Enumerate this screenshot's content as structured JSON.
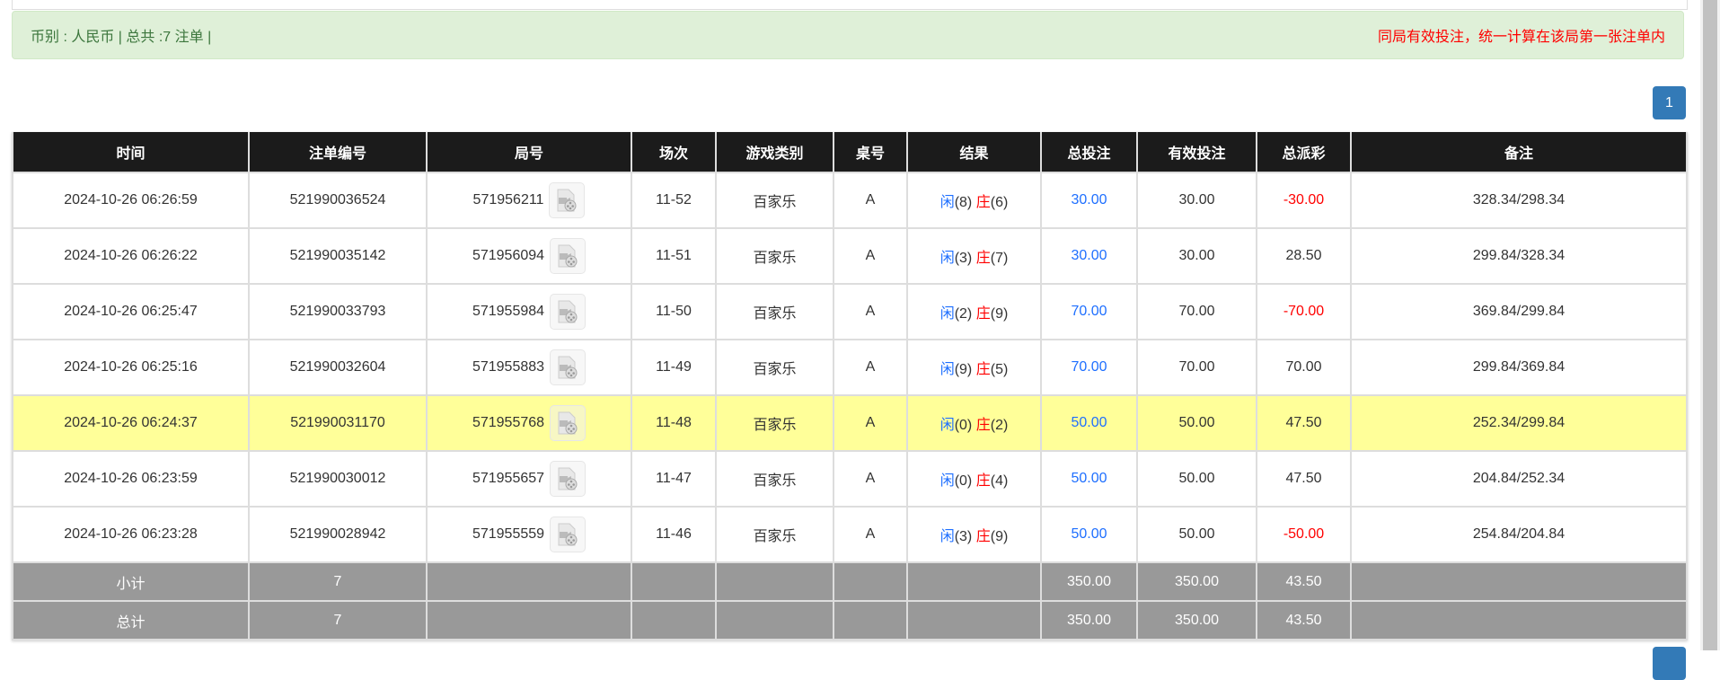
{
  "summary": {
    "left": "币别 : 人民币 | 总共 :7 注单 |",
    "right": "同局有效投注，统一计算在该局第一张注单内"
  },
  "pagination": {
    "current": "1"
  },
  "table": {
    "headers": [
      "时间",
      "注单编号",
      "局号",
      "场次",
      "游戏类别",
      "桌号",
      "结果",
      "总投注",
      "有效投注",
      "总派彩",
      "备注"
    ],
    "rows": [
      {
        "time": "2024-10-26 06:26:59",
        "bet_id": "521990036524",
        "round": "571956211",
        "shoe": "11-52",
        "game": "百家乐",
        "table": "A",
        "player_label": "闲",
        "player": "(8)",
        "banker_label": "庄",
        "banker": "(6)",
        "total": "30.00",
        "valid": "30.00",
        "payout": "-30.00",
        "negative": true,
        "note": "328.34/298.34",
        "highlight": false
      },
      {
        "time": "2024-10-26 06:26:22",
        "bet_id": "521990035142",
        "round": "571956094",
        "shoe": "11-51",
        "game": "百家乐",
        "table": "A",
        "player_label": "闲",
        "player": "(3)",
        "banker_label": "庄",
        "banker": "(7)",
        "total": "30.00",
        "valid": "30.00",
        "payout": "28.50",
        "negative": false,
        "note": "299.84/328.34",
        "highlight": false
      },
      {
        "time": "2024-10-26 06:25:47",
        "bet_id": "521990033793",
        "round": "571955984",
        "shoe": "11-50",
        "game": "百家乐",
        "table": "A",
        "player_label": "闲",
        "player": "(2)",
        "banker_label": "庄",
        "banker": "(9)",
        "total": "70.00",
        "valid": "70.00",
        "payout": "-70.00",
        "negative": true,
        "note": "369.84/299.84",
        "highlight": false
      },
      {
        "time": "2024-10-26 06:25:16",
        "bet_id": "521990032604",
        "round": "571955883",
        "shoe": "11-49",
        "game": "百家乐",
        "table": "A",
        "player_label": "闲",
        "player": "(9)",
        "banker_label": "庄",
        "banker": "(5)",
        "total": "70.00",
        "valid": "70.00",
        "payout": "70.00",
        "negative": false,
        "note": "299.84/369.84",
        "highlight": false
      },
      {
        "time": "2024-10-26 06:24:37",
        "bet_id": "521990031170",
        "round": "571955768",
        "shoe": "11-48",
        "game": "百家乐",
        "table": "A",
        "player_label": "闲",
        "player": "(0)",
        "banker_label": "庄",
        "banker": "(2)",
        "total": "50.00",
        "valid": "50.00",
        "payout": "47.50",
        "negative": false,
        "note": "252.34/299.84",
        "highlight": true
      },
      {
        "time": "2024-10-26 06:23:59",
        "bet_id": "521990030012",
        "round": "571955657",
        "shoe": "11-47",
        "game": "百家乐",
        "table": "A",
        "player_label": "闲",
        "player": "(0)",
        "banker_label": "庄",
        "banker": "(4)",
        "total": "50.00",
        "valid": "50.00",
        "payout": "47.50",
        "negative": false,
        "note": "204.84/252.34",
        "highlight": false
      },
      {
        "time": "2024-10-26 06:23:28",
        "bet_id": "521990028942",
        "round": "571955559",
        "shoe": "11-46",
        "game": "百家乐",
        "table": "A",
        "player_label": "闲",
        "player": "(3)",
        "banker_label": "庄",
        "banker": "(9)",
        "total": "50.00",
        "valid": "50.00",
        "payout": "-50.00",
        "negative": true,
        "note": "254.84/204.84",
        "highlight": false
      }
    ],
    "subtotal": {
      "label": "小计",
      "count": "7",
      "total": "350.00",
      "valid": "350.00",
      "payout": "43.50"
    },
    "grand_total": {
      "label": "总计",
      "count": "7",
      "total": "350.00",
      "valid": "350.00",
      "payout": "43.50"
    }
  },
  "colors": {
    "header_bg": "#1b1b1b",
    "highlight_row": "#ffff99",
    "summary_row": "#999999",
    "positive_blue": "#1e6fff",
    "negative_red": "#ff0000",
    "success_bg": "#dff0d8",
    "pager": "#337ab7"
  }
}
